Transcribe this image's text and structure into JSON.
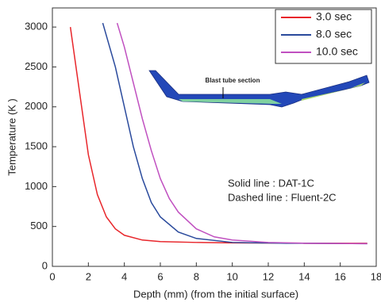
{
  "chart_data": {
    "type": "line",
    "x_label": "Depth (mm) (from the initial surface)",
    "y_label": "Temperature (K )",
    "xlim": [
      0,
      18
    ],
    "xticks": [
      0,
      2,
      4,
      6,
      8,
      10,
      12,
      14,
      16,
      18
    ],
    "ylim": [
      0,
      3200
    ],
    "yticks": [
      0,
      500,
      1000,
      1500,
      2000,
      2500,
      3000
    ],
    "annotations": [
      "Solid line : DAT-1C",
      "Dashed line : Fluent-2C",
      "Blast tube section"
    ],
    "legend": "upper right",
    "series": [
      {
        "name": "3.0 sec",
        "color": "#e8262b",
        "x": [
          1.0,
          1.5,
          2.0,
          2.5,
          3.0,
          3.5,
          4.0,
          5.0,
          6.0,
          8.0,
          10.0,
          14.0,
          17.5
        ],
        "values": [
          3000,
          2200,
          1400,
          900,
          620,
          470,
          390,
          330,
          310,
          300,
          295,
          290,
          290
        ]
      },
      {
        "name": "8.0 sec",
        "color": "#2a4a9c",
        "x": [
          2.8,
          3.5,
          4.0,
          4.5,
          5.0,
          5.5,
          6.0,
          7.0,
          8.0,
          10.0,
          13.0,
          17.5
        ],
        "values": [
          3050,
          2500,
          2000,
          1500,
          1100,
          800,
          620,
          430,
          350,
          300,
          290,
          285
        ]
      },
      {
        "name": "10.0 sec",
        "color": "#c050c0",
        "x": [
          3.6,
          4.0,
          4.5,
          5.0,
          5.5,
          6.0,
          6.5,
          7.0,
          8.0,
          9.0,
          10.0,
          12.0,
          14.0,
          17.5
        ],
        "values": [
          3050,
          2750,
          2300,
          1850,
          1450,
          1100,
          850,
          680,
          470,
          370,
          330,
          300,
          290,
          285
        ]
      }
    ]
  }
}
